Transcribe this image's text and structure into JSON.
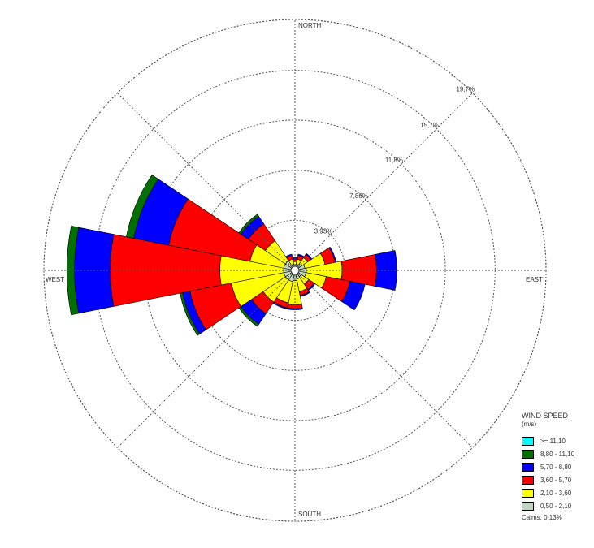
{
  "chart_data": {
    "type": "polar-stacked-bar",
    "title": "",
    "directions": [
      "N",
      "NNE",
      "NE",
      "ENE",
      "E",
      "ESE",
      "SE",
      "SSE",
      "S",
      "SSW",
      "SW",
      "WSW",
      "W",
      "WNW",
      "NW",
      "NNW"
    ],
    "compass_labels": {
      "north": "NORTH",
      "east": "EAST",
      "south": "SOUTH",
      "west": "WEST"
    },
    "ring_values": [
      3.93,
      7.86,
      11.8,
      15.7,
      19.7
    ],
    "ring_labels": [
      "3,93%",
      "7,86%",
      "11,8%",
      "15,7%",
      "19,7%"
    ],
    "rmax": 19.7,
    "legend": {
      "title": "WIND SPEED",
      "unit": "(m/s)",
      "calms": "Calms: 0,13%"
    },
    "series": [
      {
        "name": "0,50 - 2,10",
        "color": "#c0d6c0",
        "values": [
          0.4,
          0.5,
          0.6,
          0.8,
          0.9,
          0.9,
          0.6,
          0.7,
          0.8,
          0.9,
          0.9,
          0.9,
          0.9,
          0.9,
          0.9,
          0.5
        ]
      },
      {
        "name": "2,10 - 3,60",
        "color": "#ffff00",
        "values": [
          0.3,
          0.4,
          0.6,
          1.6,
          2.8,
          1.6,
          0.7,
          1.0,
          1.9,
          1.7,
          2.1,
          4.2,
          5.0,
          2.7,
          1.9,
          0.4
        ]
      },
      {
        "name": "3,60 - 5,70",
        "color": "#ff0000",
        "values": [
          0.2,
          0.3,
          0.3,
          0.8,
          2.7,
          1.9,
          0.5,
          0.3,
          0.3,
          0.4,
          1.1,
          3.3,
          8.6,
          6.5,
          1.6,
          0.3
        ]
      },
      {
        "name": "5,70 - 8,80",
        "color": "#0000ff",
        "values": [
          0.1,
          0.1,
          0.1,
          0.1,
          1.6,
          1.2,
          0.1,
          0.1,
          0.1,
          0.1,
          1.0,
          0.6,
          2.8,
          2.8,
          0.7,
          0.1
        ]
      },
      {
        "name": "8,80 - 11,10",
        "color": "#007000",
        "values": [
          0,
          0,
          0,
          0,
          0,
          0,
          0,
          0,
          0,
          0,
          0.2,
          0.2,
          0.6,
          0.6,
          0.2,
          0
        ]
      },
      {
        "name": ">= 11,10",
        "color": "#00ffff",
        "values": [
          0,
          0,
          0,
          0,
          0,
          0,
          0,
          0,
          0,
          0,
          0,
          0,
          0,
          0,
          0,
          0
        ]
      }
    ]
  }
}
